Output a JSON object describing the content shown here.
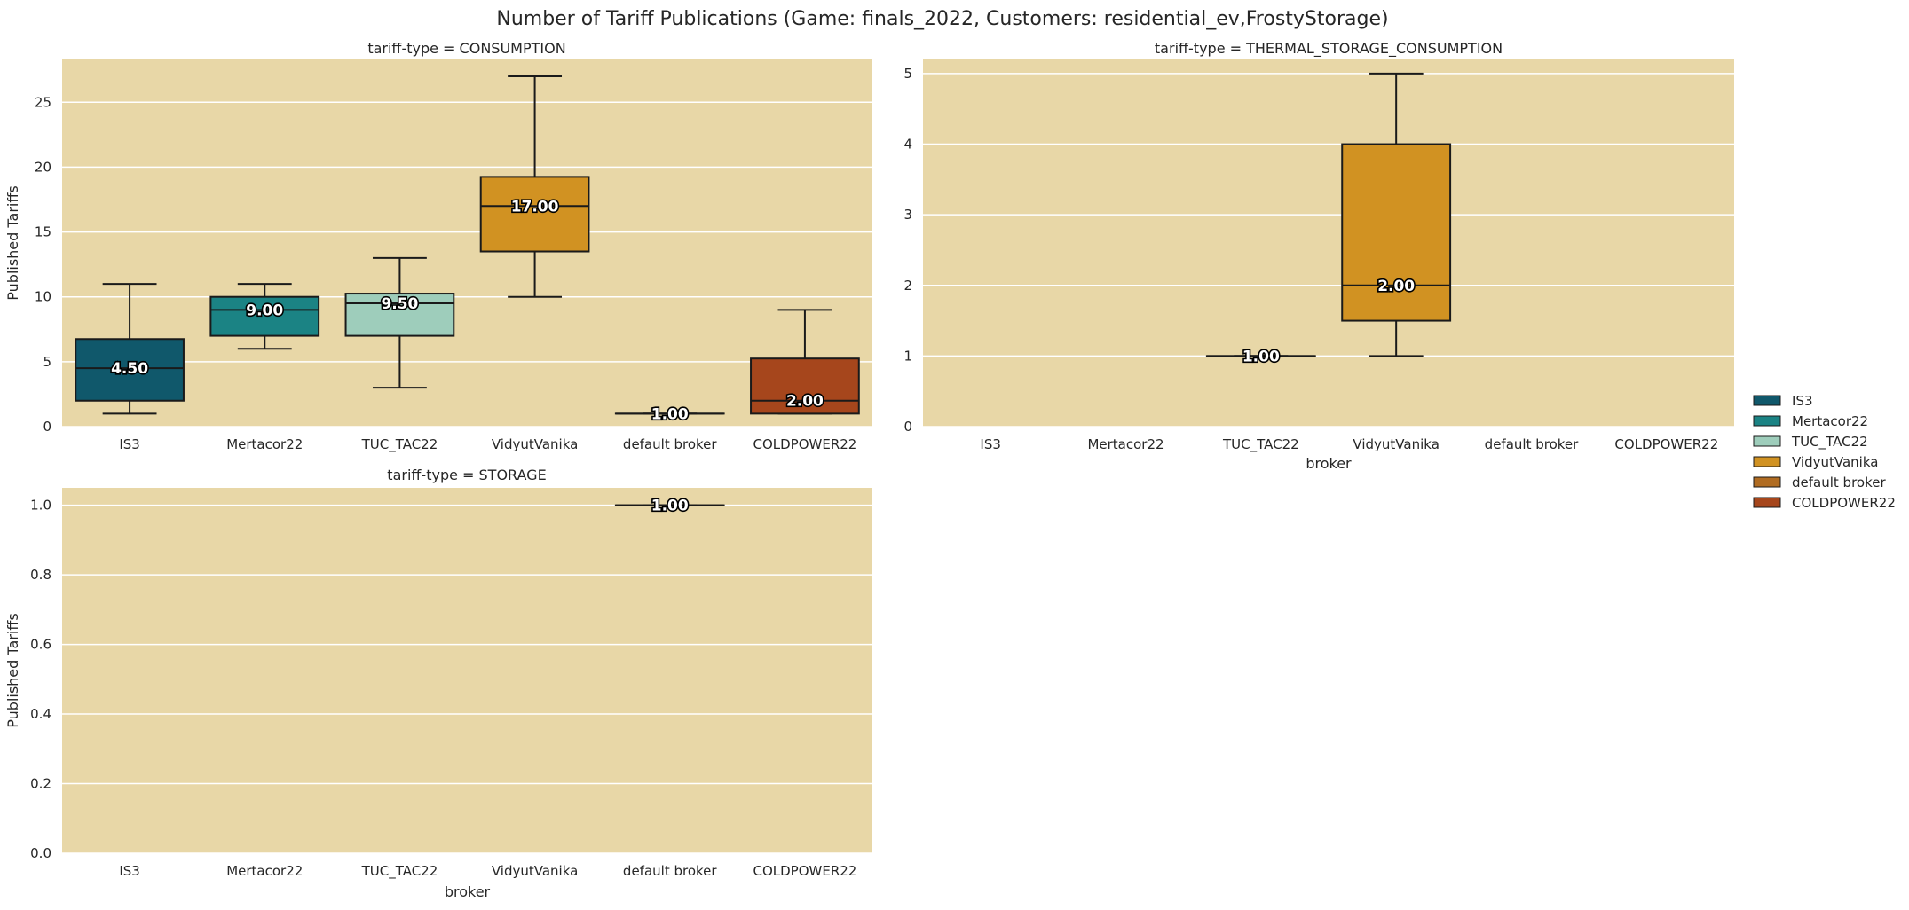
{
  "chart_data": {
    "type": "box",
    "title": "Number of Tariff Publications (Game: finals_2022, Customers: residential_ev,FrostyStorage)",
    "categories": [
      "IS3",
      "Mertacor22",
      "TUC_TAC22",
      "VidyutVanika",
      "default broker",
      "COLDPOWER22"
    ],
    "colors": {
      "IS3": "#10586b",
      "Mertacor22": "#1b8384",
      "TUC_TAC22": "#9ecdbb",
      "VidyutVanika": "#d19222",
      "default broker": "#b06c22",
      "COLDPOWER22": "#a6461c",
      "background": "#e8d7a7",
      "grid": "#ffffff"
    },
    "legend": {
      "position": "right",
      "entries": [
        "IS3",
        "Mertacor22",
        "TUC_TAC22",
        "VidyutVanika",
        "default broker",
        "COLDPOWER22"
      ]
    },
    "grid": true,
    "panels": [
      {
        "id": "consumption",
        "title": "tariff-type = CONSUMPTION",
        "xlabel": "",
        "ylabel": "Published Tariffs",
        "ylim": [
          0,
          28.3
        ],
        "yticks": [
          0,
          5,
          10,
          15,
          20,
          25
        ],
        "ytick_labels": [
          "0",
          "5",
          "10",
          "15",
          "20",
          "25"
        ],
        "boxes": [
          {
            "broker": "IS3",
            "min": 1,
            "q1": 2,
            "median": 4.5,
            "q3": 6.75,
            "max": 11,
            "label": "4.50"
          },
          {
            "broker": "Mertacor22",
            "min": 6,
            "q1": 7,
            "median": 9,
            "q3": 10,
            "max": 11,
            "label": "9.00"
          },
          {
            "broker": "TUC_TAC22",
            "min": 3,
            "q1": 7,
            "median": 9.5,
            "q3": 10.25,
            "max": 13,
            "label": "9.50"
          },
          {
            "broker": "VidyutVanika",
            "min": 10,
            "q1": 13.5,
            "median": 17,
            "q3": 19.25,
            "max": 27,
            "label": "17.00"
          },
          {
            "broker": "default broker",
            "min": 1,
            "q1": 1,
            "median": 1,
            "q3": 1,
            "max": 1,
            "label": "1.00"
          },
          {
            "broker": "COLDPOWER22",
            "min": 1,
            "q1": 1,
            "median": 2,
            "q3": 5.25,
            "max": 9,
            "label": "2.00"
          }
        ]
      },
      {
        "id": "thermal",
        "title": "tariff-type = THERMAL_STORAGE_CONSUMPTION",
        "xlabel": "broker",
        "ylabel": "",
        "ylim": [
          0,
          5.2
        ],
        "yticks": [
          0,
          1,
          2,
          3,
          4,
          5
        ],
        "ytick_labels": [
          "0",
          "1",
          "2",
          "3",
          "4",
          "5"
        ],
        "boxes": [
          {
            "broker": "TUC_TAC22",
            "min": 1,
            "q1": 1,
            "median": 1,
            "q3": 1,
            "max": 1,
            "label": "1.00"
          },
          {
            "broker": "VidyutVanika",
            "min": 1,
            "q1": 1.5,
            "median": 2,
            "q3": 4,
            "max": 5,
            "label": "2.00"
          }
        ]
      },
      {
        "id": "storage",
        "title": "tariff-type = STORAGE",
        "xlabel": "broker",
        "ylabel": "Published Tariffs",
        "ylim": [
          0,
          1.05
        ],
        "yticks": [
          0,
          0.2,
          0.4,
          0.6,
          0.8,
          1.0
        ],
        "ytick_labels": [
          "0.0",
          "0.2",
          "0.4",
          "0.6",
          "0.8",
          "1.0"
        ],
        "boxes": [
          {
            "broker": "default broker",
            "min": 1,
            "q1": 1,
            "median": 1,
            "q3": 1,
            "max": 1,
            "label": "1.00"
          }
        ]
      }
    ]
  }
}
